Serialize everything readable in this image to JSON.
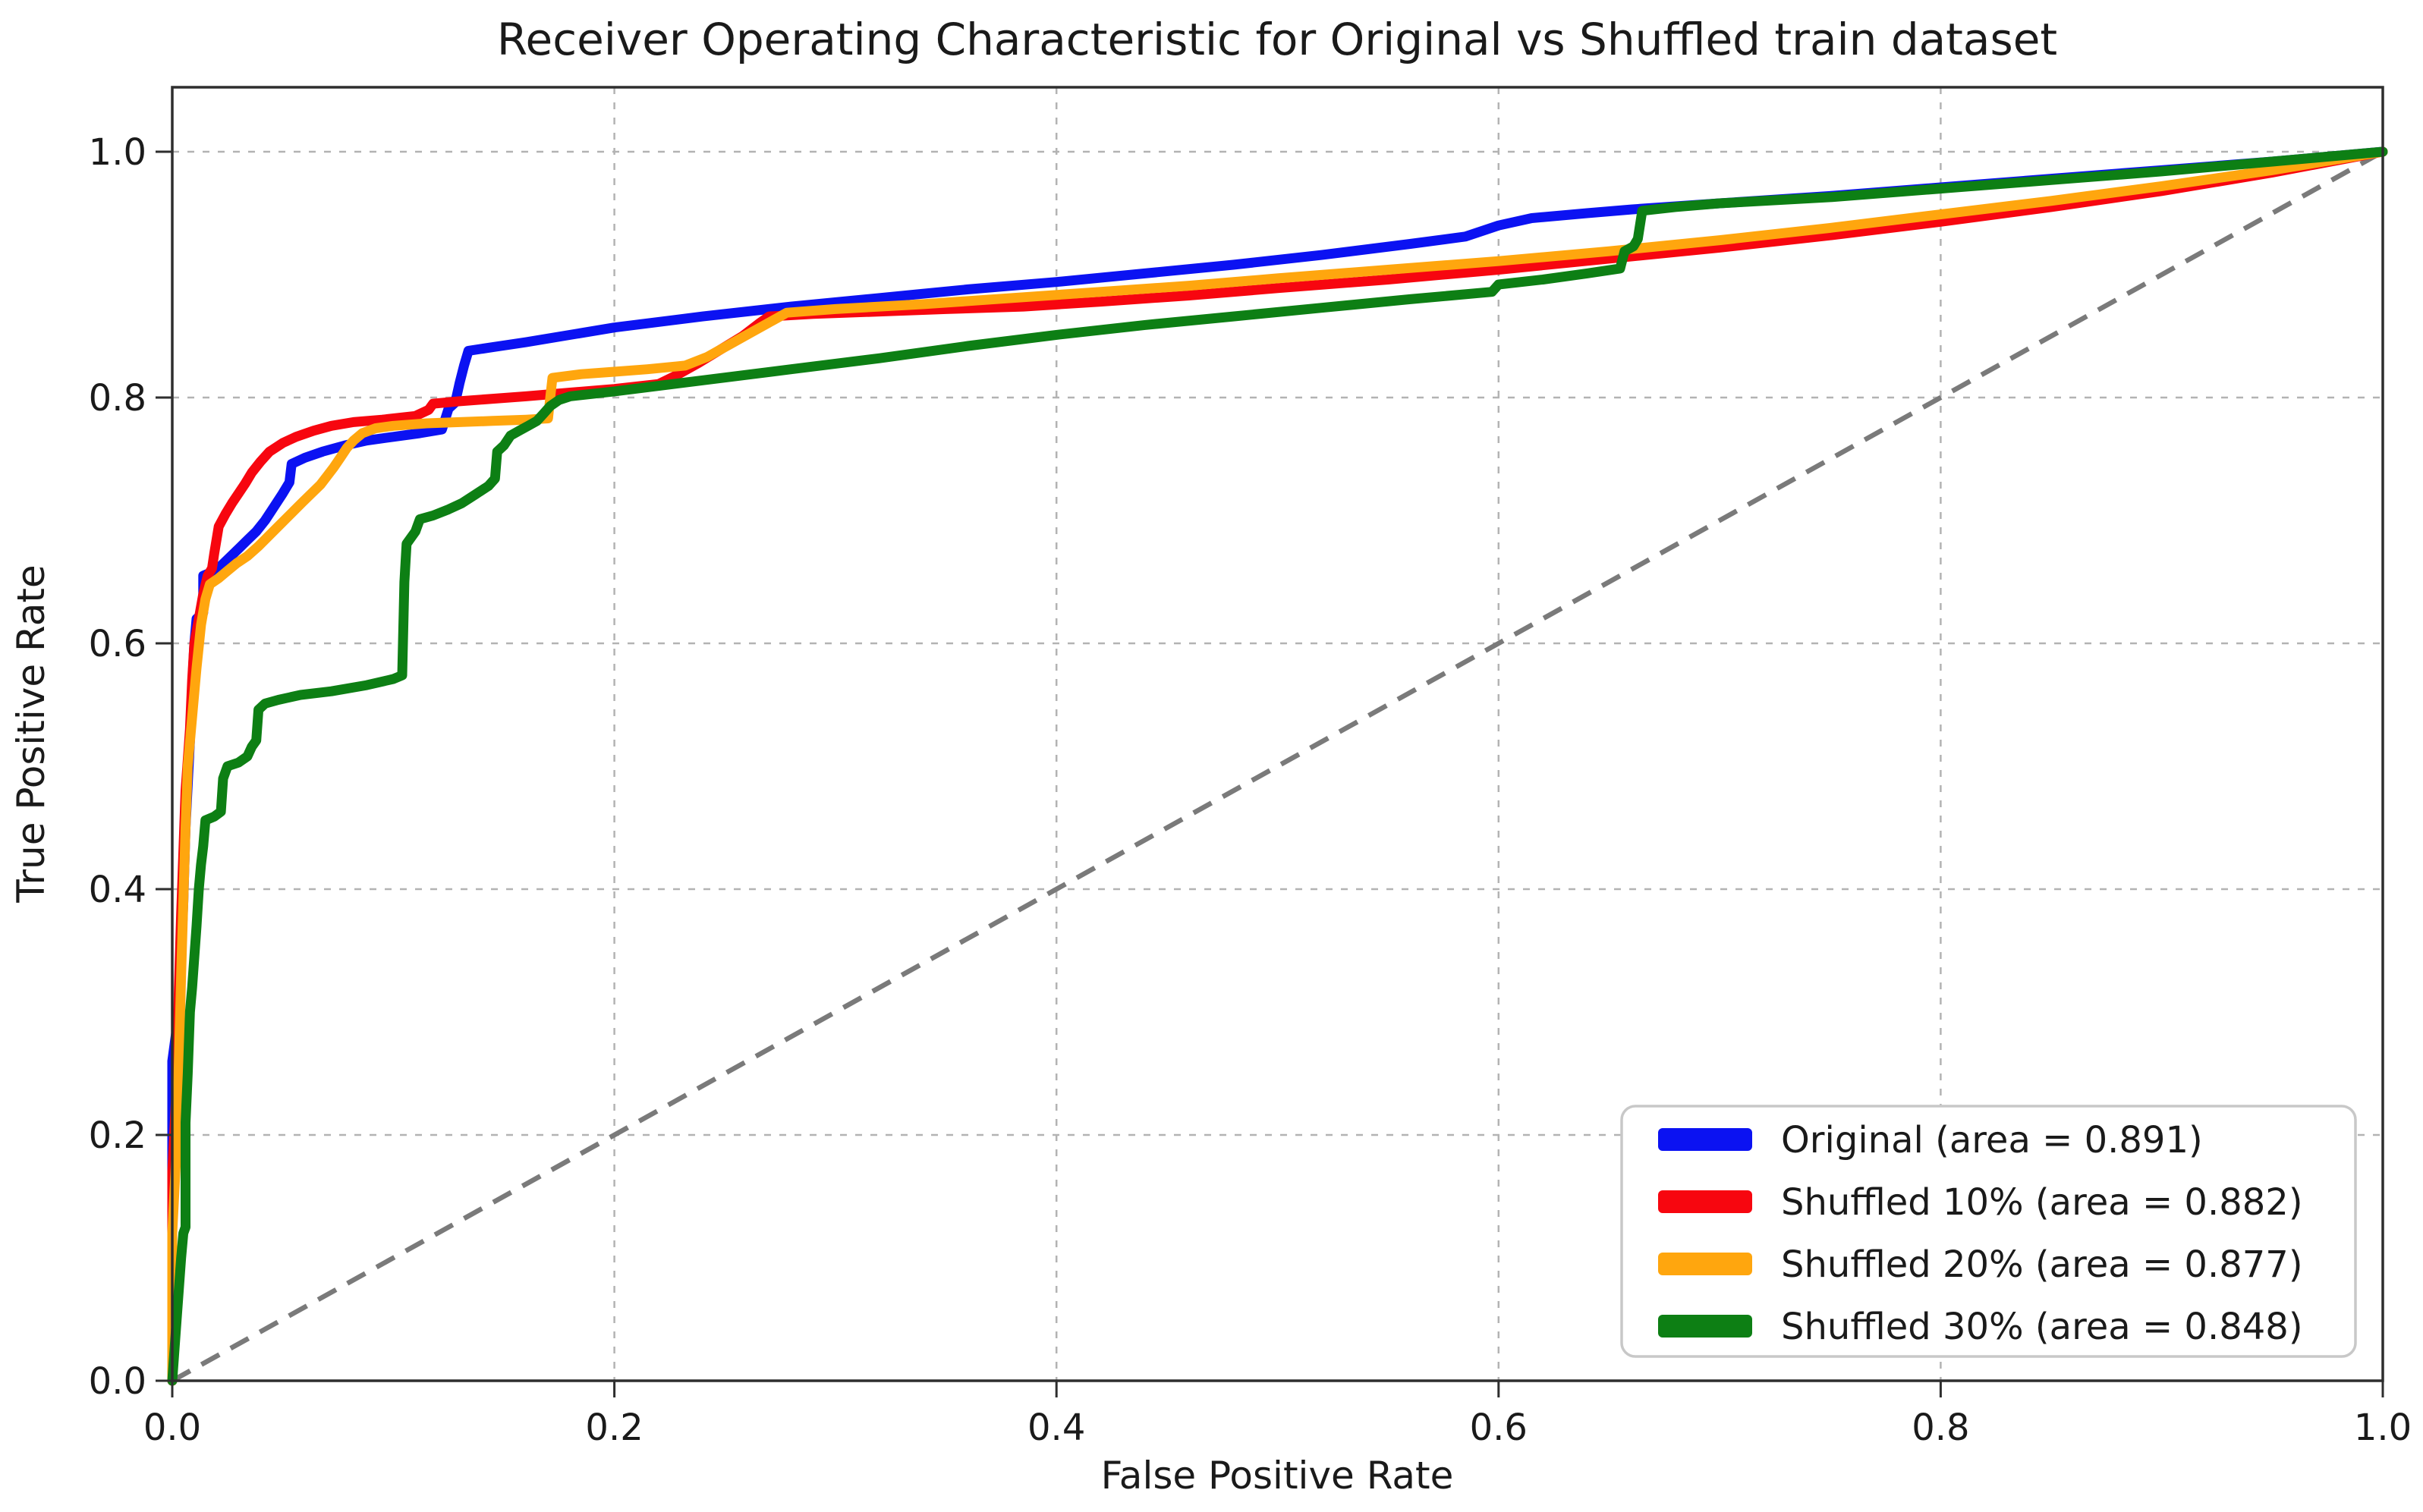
{
  "figure": {
    "title": "Receiver Operating Characteristic for Original vs Shuffled train dataset",
    "xlabel": "False Positive Rate",
    "ylabel": "True Positive Rate"
  },
  "chart_data": {
    "type": "line",
    "title": "Receiver Operating Characteristic for Original vs Shuffled train dataset",
    "xlabel": "False Positive Rate",
    "ylabel": "True Positive Rate",
    "xlim": [
      0.0,
      1.0
    ],
    "ylim": [
      0.0,
      1.05
    ],
    "x_ticks": [
      "0.0",
      "0.2",
      "0.4",
      "0.6",
      "0.8",
      "1.0"
    ],
    "y_ticks": [
      "0.0",
      "0.2",
      "0.4",
      "0.6",
      "0.8",
      "1.0"
    ],
    "grid": "on-dashed",
    "grid_color": "#b3b3b3",
    "legend_position": "lower right",
    "frame_color": "#2e2e2e",
    "reference_line": {
      "name": "chance-diagonal",
      "from": [
        0,
        0
      ],
      "to": [
        1,
        1
      ],
      "style": "dashed",
      "color": "#7a7a7a"
    },
    "series": [
      {
        "name": "Original",
        "area": 0.891,
        "legend_label": "Original (area = 0.891)",
        "color": "#0b12f2",
        "points": [
          [
            0.0,
            0.0
          ],
          [
            0.0,
            0.26
          ],
          [
            0.003,
            0.3
          ],
          [
            0.005,
            0.39
          ],
          [
            0.006,
            0.45
          ],
          [
            0.008,
            0.52
          ],
          [
            0.009,
            0.565
          ],
          [
            0.01,
            0.6
          ],
          [
            0.011,
            0.62
          ],
          [
            0.014,
            0.625
          ],
          [
            0.014,
            0.655
          ],
          [
            0.018,
            0.658
          ],
          [
            0.022,
            0.663
          ],
          [
            0.026,
            0.67
          ],
          [
            0.03,
            0.677
          ],
          [
            0.034,
            0.684
          ],
          [
            0.038,
            0.691
          ],
          [
            0.042,
            0.7
          ],
          [
            0.046,
            0.711
          ],
          [
            0.05,
            0.722
          ],
          [
            0.053,
            0.731
          ],
          [
            0.054,
            0.746
          ],
          [
            0.06,
            0.751
          ],
          [
            0.068,
            0.756
          ],
          [
            0.078,
            0.761
          ],
          [
            0.088,
            0.765
          ],
          [
            0.1,
            0.768
          ],
          [
            0.112,
            0.771
          ],
          [
            0.122,
            0.774
          ],
          [
            0.125,
            0.791
          ],
          [
            0.128,
            0.796
          ],
          [
            0.13,
            0.812
          ],
          [
            0.132,
            0.826
          ],
          [
            0.134,
            0.838
          ],
          [
            0.145,
            0.841
          ],
          [
            0.16,
            0.845
          ],
          [
            0.18,
            0.851
          ],
          [
            0.2,
            0.857
          ],
          [
            0.24,
            0.866
          ],
          [
            0.28,
            0.874
          ],
          [
            0.32,
            0.881
          ],
          [
            0.36,
            0.888
          ],
          [
            0.4,
            0.894
          ],
          [
            0.44,
            0.901
          ],
          [
            0.48,
            0.908
          ],
          [
            0.52,
            0.916
          ],
          [
            0.56,
            0.925
          ],
          [
            0.585,
            0.931
          ],
          [
            0.6,
            0.94
          ],
          [
            0.615,
            0.946
          ],
          [
            0.64,
            0.95
          ],
          [
            0.66,
            0.953
          ],
          [
            0.7,
            0.958
          ],
          [
            0.75,
            0.964
          ],
          [
            0.8,
            0.971
          ],
          [
            0.85,
            0.978
          ],
          [
            0.9,
            0.985
          ],
          [
            0.95,
            0.992
          ],
          [
            1.0,
            1.0
          ]
        ]
      },
      {
        "name": "Shuffled 10%",
        "area": 0.882,
        "legend_label": "Shuffled 10% (area = 0.882)",
        "color": "#f7060f",
        "points": [
          [
            0.0,
            0.0
          ],
          [
            0.0,
            0.17
          ],
          [
            0.002,
            0.24
          ],
          [
            0.003,
            0.32
          ],
          [
            0.004,
            0.38
          ],
          [
            0.005,
            0.43
          ],
          [
            0.006,
            0.48
          ],
          [
            0.008,
            0.53
          ],
          [
            0.009,
            0.57
          ],
          [
            0.01,
            0.6
          ],
          [
            0.012,
            0.62
          ],
          [
            0.014,
            0.64
          ],
          [
            0.016,
            0.655
          ],
          [
            0.018,
            0.661
          ],
          [
            0.019,
            0.673
          ],
          [
            0.021,
            0.695
          ],
          [
            0.024,
            0.705
          ],
          [
            0.027,
            0.714
          ],
          [
            0.03,
            0.722
          ],
          [
            0.033,
            0.73
          ],
          [
            0.036,
            0.739
          ],
          [
            0.04,
            0.748
          ],
          [
            0.044,
            0.756
          ],
          [
            0.05,
            0.763
          ],
          [
            0.056,
            0.768
          ],
          [
            0.064,
            0.773
          ],
          [
            0.072,
            0.777
          ],
          [
            0.082,
            0.78
          ],
          [
            0.095,
            0.782
          ],
          [
            0.11,
            0.785
          ],
          [
            0.116,
            0.79
          ],
          [
            0.118,
            0.795
          ],
          [
            0.13,
            0.797
          ],
          [
            0.145,
            0.799
          ],
          [
            0.16,
            0.801
          ],
          [
            0.18,
            0.804
          ],
          [
            0.2,
            0.807
          ],
          [
            0.22,
            0.811
          ],
          [
            0.228,
            0.818
          ],
          [
            0.238,
            0.828
          ],
          [
            0.248,
            0.839
          ],
          [
            0.258,
            0.85
          ],
          [
            0.266,
            0.861
          ],
          [
            0.27,
            0.866
          ],
          [
            0.29,
            0.868
          ],
          [
            0.32,
            0.87
          ],
          [
            0.35,
            0.872
          ],
          [
            0.385,
            0.874
          ],
          [
            0.42,
            0.878
          ],
          [
            0.46,
            0.883
          ],
          [
            0.5,
            0.889
          ],
          [
            0.55,
            0.896
          ],
          [
            0.6,
            0.904
          ],
          [
            0.65,
            0.913
          ],
          [
            0.7,
            0.922
          ],
          [
            0.75,
            0.932
          ],
          [
            0.8,
            0.943
          ],
          [
            0.85,
            0.955
          ],
          [
            0.9,
            0.968
          ],
          [
            0.95,
            0.983
          ],
          [
            1.0,
            1.0
          ]
        ]
      },
      {
        "name": "Shuffled 20%",
        "area": 0.877,
        "legend_label": "Shuffled 20% (area = 0.877)",
        "color": "#ffa60e",
        "points": [
          [
            0.0,
            0.0
          ],
          [
            0.0,
            0.12
          ],
          [
            0.002,
            0.19
          ],
          [
            0.003,
            0.26
          ],
          [
            0.004,
            0.33
          ],
          [
            0.005,
            0.39
          ],
          [
            0.006,
            0.45
          ],
          [
            0.007,
            0.5
          ],
          [
            0.009,
            0.54
          ],
          [
            0.011,
            0.58
          ],
          [
            0.013,
            0.615
          ],
          [
            0.015,
            0.636
          ],
          [
            0.017,
            0.648
          ],
          [
            0.021,
            0.653
          ],
          [
            0.025,
            0.659
          ],
          [
            0.029,
            0.665
          ],
          [
            0.034,
            0.671
          ],
          [
            0.039,
            0.679
          ],
          [
            0.044,
            0.688
          ],
          [
            0.049,
            0.697
          ],
          [
            0.054,
            0.706
          ],
          [
            0.059,
            0.715
          ],
          [
            0.063,
            0.722
          ],
          [
            0.067,
            0.729
          ],
          [
            0.07,
            0.736
          ],
          [
            0.073,
            0.743
          ],
          [
            0.076,
            0.751
          ],
          [
            0.079,
            0.759
          ],
          [
            0.082,
            0.765
          ],
          [
            0.086,
            0.771
          ],
          [
            0.092,
            0.775
          ],
          [
            0.1,
            0.777
          ],
          [
            0.115,
            0.779
          ],
          [
            0.13,
            0.78
          ],
          [
            0.145,
            0.781
          ],
          [
            0.16,
            0.782
          ],
          [
            0.17,
            0.783
          ],
          [
            0.171,
            0.8
          ],
          [
            0.172,
            0.816
          ],
          [
            0.185,
            0.819
          ],
          [
            0.2,
            0.821
          ],
          [
            0.215,
            0.823
          ],
          [
            0.232,
            0.826
          ],
          [
            0.242,
            0.833
          ],
          [
            0.252,
            0.843
          ],
          [
            0.262,
            0.853
          ],
          [
            0.272,
            0.863
          ],
          [
            0.278,
            0.869
          ],
          [
            0.3,
            0.872
          ],
          [
            0.34,
            0.876
          ],
          [
            0.38,
            0.881
          ],
          [
            0.42,
            0.886
          ],
          [
            0.46,
            0.891
          ],
          [
            0.5,
            0.897
          ],
          [
            0.55,
            0.904
          ],
          [
            0.6,
            0.911
          ],
          [
            0.65,
            0.919
          ],
          [
            0.7,
            0.928
          ],
          [
            0.75,
            0.938
          ],
          [
            0.8,
            0.949
          ],
          [
            0.85,
            0.96
          ],
          [
            0.9,
            0.972
          ],
          [
            0.95,
            0.985
          ],
          [
            1.0,
            1.0
          ]
        ]
      },
      {
        "name": "Shuffled 30%",
        "area": 0.848,
        "legend_label": "Shuffled 30% (area = 0.848)",
        "color": "#0d7f14",
        "points": [
          [
            0.0,
            0.0
          ],
          [
            0.002,
            0.05
          ],
          [
            0.004,
            0.1
          ],
          [
            0.005,
            0.12
          ],
          [
            0.006,
            0.125
          ],
          [
            0.006,
            0.21
          ],
          [
            0.007,
            0.25
          ],
          [
            0.008,
            0.3
          ],
          [
            0.009,
            0.32
          ],
          [
            0.01,
            0.345
          ],
          [
            0.011,
            0.37
          ],
          [
            0.012,
            0.4
          ],
          [
            0.013,
            0.42
          ],
          [
            0.014,
            0.435
          ],
          [
            0.015,
            0.456
          ],
          [
            0.019,
            0.459
          ],
          [
            0.022,
            0.463
          ],
          [
            0.023,
            0.49
          ],
          [
            0.025,
            0.5
          ],
          [
            0.03,
            0.503
          ],
          [
            0.034,
            0.508
          ],
          [
            0.036,
            0.516
          ],
          [
            0.038,
            0.521
          ],
          [
            0.039,
            0.546
          ],
          [
            0.042,
            0.551
          ],
          [
            0.048,
            0.554
          ],
          [
            0.058,
            0.558
          ],
          [
            0.072,
            0.561
          ],
          [
            0.088,
            0.566
          ],
          [
            0.1,
            0.571
          ],
          [
            0.104,
            0.574
          ],
          [
            0.105,
            0.65
          ],
          [
            0.106,
            0.681
          ],
          [
            0.11,
            0.691
          ],
          [
            0.112,
            0.701
          ],
          [
            0.118,
            0.704
          ],
          [
            0.125,
            0.709
          ],
          [
            0.131,
            0.714
          ],
          [
            0.137,
            0.721
          ],
          [
            0.143,
            0.728
          ],
          [
            0.146,
            0.734
          ],
          [
            0.147,
            0.756
          ],
          [
            0.15,
            0.761
          ],
          [
            0.153,
            0.769
          ],
          [
            0.157,
            0.773
          ],
          [
            0.161,
            0.777
          ],
          [
            0.165,
            0.781
          ],
          [
            0.168,
            0.787
          ],
          [
            0.171,
            0.793
          ],
          [
            0.175,
            0.798
          ],
          [
            0.18,
            0.801
          ],
          [
            0.2,
            0.805
          ],
          [
            0.24,
            0.814
          ],
          [
            0.28,
            0.823
          ],
          [
            0.32,
            0.832
          ],
          [
            0.36,
            0.842
          ],
          [
            0.4,
            0.851
          ],
          [
            0.44,
            0.859
          ],
          [
            0.48,
            0.866
          ],
          [
            0.52,
            0.873
          ],
          [
            0.56,
            0.88
          ],
          [
            0.597,
            0.886
          ],
          [
            0.6,
            0.892
          ],
          [
            0.62,
            0.896
          ],
          [
            0.64,
            0.901
          ],
          [
            0.655,
            0.905
          ],
          [
            0.657,
            0.919
          ],
          [
            0.661,
            0.923
          ],
          [
            0.663,
            0.929
          ],
          [
            0.665,
            0.952
          ],
          [
            0.68,
            0.955
          ],
          [
            0.7,
            0.958
          ],
          [
            0.75,
            0.963
          ],
          [
            0.8,
            0.97
          ],
          [
            0.85,
            0.977
          ],
          [
            0.9,
            0.984
          ],
          [
            0.95,
            0.992
          ],
          [
            1.0,
            1.0
          ]
        ]
      }
    ]
  }
}
